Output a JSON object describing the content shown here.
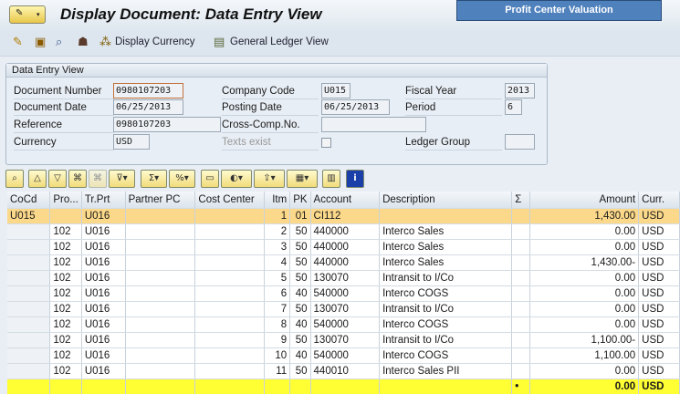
{
  "title": "Display Document: Data Entry View",
  "overlay_label": "Profit Center Valuation",
  "toolbar": {
    "display_currency": "Display Currency",
    "general_ledger_view": "General Ledger View"
  },
  "panel": {
    "title": "Data Entry View",
    "document_number": {
      "label": "Document Number",
      "value": "0980107203"
    },
    "company_code": {
      "label": "Company Code",
      "value": "U015"
    },
    "fiscal_year": {
      "label": "Fiscal Year",
      "value": "2013"
    },
    "document_date": {
      "label": "Document Date",
      "value": "06/25/2013"
    },
    "posting_date": {
      "label": "Posting Date",
      "value": "06/25/2013"
    },
    "period": {
      "label": "Period",
      "value": "6"
    },
    "reference": {
      "label": "Reference",
      "value": "0980107203"
    },
    "cross_comp": {
      "label": "Cross-Comp.No.",
      "value": ""
    },
    "currency": {
      "label": "Currency",
      "value": "USD"
    },
    "texts_exist": {
      "label": "Texts exist",
      "checked": false
    },
    "ledger_group": {
      "label": "Ledger Group",
      "value": ""
    }
  },
  "grid": {
    "columns": [
      "CoCd",
      "Pro...",
      "Tr.Prt",
      "Partner PC",
      "Cost Center",
      "Itm",
      "PK",
      "Account",
      "Description",
      "Σ",
      "Amount",
      "Curr."
    ],
    "rows": [
      [
        "U015",
        "",
        "U016",
        "",
        "",
        "1",
        "01",
        "CI112",
        "",
        "",
        "1,430.00",
        "USD"
      ],
      [
        "",
        "102",
        "U016",
        "",
        "",
        "2",
        "50",
        "440000",
        "Interco Sales",
        "",
        "0.00",
        "USD"
      ],
      [
        "",
        "102",
        "U016",
        "",
        "",
        "3",
        "50",
        "440000",
        "Interco Sales",
        "",
        "0.00",
        "USD"
      ],
      [
        "",
        "102",
        "U016",
        "",
        "",
        "4",
        "50",
        "440000",
        "Interco Sales",
        "",
        "1,430.00-",
        "USD"
      ],
      [
        "",
        "102",
        "U016",
        "",
        "",
        "5",
        "50",
        "130070",
        "Intransit to I/Co",
        "",
        "0.00",
        "USD"
      ],
      [
        "",
        "102",
        "U016",
        "",
        "",
        "6",
        "40",
        "540000",
        "Interco COGS",
        "",
        "0.00",
        "USD"
      ],
      [
        "",
        "102",
        "U016",
        "",
        "",
        "7",
        "50",
        "130070",
        "Intransit to I/Co",
        "",
        "0.00",
        "USD"
      ],
      [
        "",
        "102",
        "U016",
        "",
        "",
        "8",
        "40",
        "540000",
        "Interco COGS",
        "",
        "0.00",
        "USD"
      ],
      [
        "",
        "102",
        "U016",
        "",
        "",
        "9",
        "50",
        "130070",
        "Intransit to I/Co",
        "",
        "1,100.00-",
        "USD"
      ],
      [
        "",
        "102",
        "U016",
        "",
        "",
        "10",
        "40",
        "540000",
        "Interco COGS",
        "",
        "1,100.00",
        "USD"
      ],
      [
        "",
        "102",
        "U016",
        "",
        "",
        "11",
        "50",
        "440010",
        "Interco Sales PII",
        "",
        "0.00",
        "USD"
      ]
    ],
    "total": [
      "",
      "",
      "",
      "",
      "",
      "",
      "",
      "",
      "",
      "•",
      "0.00",
      "USD"
    ]
  }
}
